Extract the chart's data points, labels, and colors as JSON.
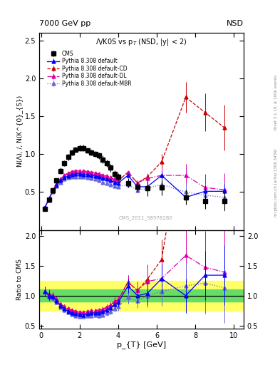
{
  "title_main": "Λ/K0S vs p_{T} (NSD, |y| < 2)",
  "header_left": "7000 GeV pp",
  "header_right": "NSD",
  "ylabel_main": "N(Λ), /, N(K^{0}_{S})",
  "ylabel_ratio": "Ratio to CMS",
  "xlabel": "p_{T} [GeV]",
  "right_label": "Rivet 3.1.10, ≥ 100k events",
  "right_label2": "mcplots.cern.ch [arXiv:1306.3436]",
  "watermark": "CMS_2011_S8978280",
  "ylim_main": [
    0.0,
    2.6
  ],
  "ylim_ratio": [
    0.45,
    2.1
  ],
  "yticks_main": [
    0.5,
    1.0,
    1.5,
    2.0,
    2.5
  ],
  "yticks_ratio": [
    0.5,
    1.0,
    1.5,
    2.0
  ],
  "xlim": [
    -0.1,
    10.5
  ],
  "xticks": [
    0,
    2,
    4,
    6,
    8,
    10
  ],
  "cms_pt": [
    0.2,
    0.4,
    0.6,
    0.8,
    1.0,
    1.2,
    1.4,
    1.6,
    1.8,
    2.0,
    2.2,
    2.4,
    2.6,
    2.8,
    3.0,
    3.2,
    3.4,
    3.6,
    3.8,
    4.0,
    4.5,
    5.0,
    5.5,
    6.25,
    7.5,
    8.5,
    9.5
  ],
  "cms_y": [
    0.28,
    0.4,
    0.52,
    0.65,
    0.78,
    0.88,
    0.96,
    1.02,
    1.06,
    1.08,
    1.08,
    1.05,
    1.02,
    1.0,
    0.98,
    0.93,
    0.88,
    0.82,
    0.74,
    0.7,
    0.62,
    0.57,
    0.55,
    0.56,
    0.43,
    0.38,
    0.38
  ],
  "cms_yerr": [
    0.02,
    0.03,
    0.03,
    0.03,
    0.04,
    0.04,
    0.04,
    0.04,
    0.04,
    0.04,
    0.04,
    0.04,
    0.04,
    0.04,
    0.04,
    0.05,
    0.05,
    0.05,
    0.05,
    0.05,
    0.06,
    0.07,
    0.1,
    0.1,
    0.1,
    0.1,
    0.12
  ],
  "py_default_pt": [
    0.2,
    0.4,
    0.6,
    0.8,
    1.0,
    1.2,
    1.4,
    1.6,
    1.8,
    2.0,
    2.2,
    2.4,
    2.6,
    2.8,
    3.0,
    3.2,
    3.4,
    3.6,
    3.8,
    4.0,
    4.5,
    5.0,
    5.5,
    6.25,
    7.5,
    8.5,
    9.5
  ],
  "py_default_y": [
    0.3,
    0.4,
    0.51,
    0.59,
    0.65,
    0.69,
    0.71,
    0.73,
    0.74,
    0.74,
    0.73,
    0.73,
    0.72,
    0.71,
    0.7,
    0.68,
    0.67,
    0.65,
    0.63,
    0.62,
    0.72,
    0.57,
    0.57,
    0.72,
    0.43,
    0.51,
    0.51
  ],
  "py_default_yerr": [
    0.01,
    0.01,
    0.01,
    0.01,
    0.01,
    0.01,
    0.01,
    0.01,
    0.01,
    0.01,
    0.01,
    0.01,
    0.01,
    0.01,
    0.01,
    0.01,
    0.01,
    0.01,
    0.01,
    0.01,
    0.02,
    0.02,
    0.03,
    0.05,
    0.07,
    0.08,
    0.1
  ],
  "py_cd_pt": [
    0.2,
    0.4,
    0.6,
    0.8,
    1.0,
    1.2,
    1.4,
    1.6,
    1.8,
    2.0,
    2.2,
    2.4,
    2.6,
    2.8,
    3.0,
    3.2,
    3.4,
    3.6,
    3.8,
    4.0,
    4.5,
    5.0,
    5.5,
    6.25,
    7.5,
    8.5,
    9.5
  ],
  "py_cd_y": [
    0.3,
    0.41,
    0.52,
    0.61,
    0.67,
    0.72,
    0.75,
    0.77,
    0.78,
    0.78,
    0.78,
    0.77,
    0.76,
    0.75,
    0.74,
    0.72,
    0.71,
    0.69,
    0.67,
    0.65,
    0.76,
    0.62,
    0.7,
    0.9,
    1.75,
    1.55,
    1.35
  ],
  "py_cd_yerr": [
    0.01,
    0.01,
    0.01,
    0.01,
    0.01,
    0.01,
    0.01,
    0.01,
    0.01,
    0.01,
    0.01,
    0.01,
    0.01,
    0.01,
    0.01,
    0.01,
    0.01,
    0.01,
    0.01,
    0.02,
    0.02,
    0.03,
    0.05,
    0.1,
    0.2,
    0.25,
    0.3
  ],
  "py_dl_pt": [
    0.2,
    0.4,
    0.6,
    0.8,
    1.0,
    1.2,
    1.4,
    1.6,
    1.8,
    2.0,
    2.2,
    2.4,
    2.6,
    2.8,
    3.0,
    3.2,
    3.4,
    3.6,
    3.8,
    4.0,
    4.5,
    5.0,
    5.5,
    6.25,
    7.5,
    8.5,
    9.5
  ],
  "py_dl_y": [
    0.3,
    0.41,
    0.52,
    0.61,
    0.67,
    0.72,
    0.75,
    0.77,
    0.78,
    0.78,
    0.78,
    0.77,
    0.76,
    0.75,
    0.74,
    0.72,
    0.71,
    0.69,
    0.67,
    0.65,
    0.76,
    0.62,
    0.68,
    0.72,
    0.72,
    0.56,
    0.53
  ],
  "py_dl_yerr": [
    0.01,
    0.01,
    0.01,
    0.01,
    0.01,
    0.01,
    0.01,
    0.01,
    0.01,
    0.01,
    0.01,
    0.01,
    0.01,
    0.01,
    0.01,
    0.01,
    0.01,
    0.01,
    0.01,
    0.02,
    0.02,
    0.03,
    0.05,
    0.1,
    0.15,
    0.18,
    0.22
  ],
  "py_mbr_pt": [
    0.2,
    0.4,
    0.6,
    0.8,
    1.0,
    1.2,
    1.4,
    1.6,
    1.8,
    2.0,
    2.2,
    2.4,
    2.6,
    2.8,
    3.0,
    3.2,
    3.4,
    3.6,
    3.8,
    4.0,
    4.5,
    5.0,
    5.5,
    6.25,
    7.5,
    8.5,
    9.5
  ],
  "py_mbr_y": [
    0.3,
    0.39,
    0.5,
    0.58,
    0.63,
    0.67,
    0.69,
    0.7,
    0.7,
    0.7,
    0.7,
    0.69,
    0.68,
    0.67,
    0.65,
    0.63,
    0.62,
    0.6,
    0.58,
    0.57,
    0.6,
    0.52,
    0.55,
    0.6,
    0.5,
    0.46,
    0.43
  ],
  "py_mbr_yerr": [
    0.01,
    0.01,
    0.01,
    0.01,
    0.01,
    0.01,
    0.01,
    0.01,
    0.01,
    0.01,
    0.01,
    0.01,
    0.01,
    0.01,
    0.01,
    0.01,
    0.01,
    0.01,
    0.01,
    0.02,
    0.02,
    0.03,
    0.04,
    0.08,
    0.12,
    0.15,
    0.18
  ],
  "green_band": [
    0.9,
    1.1
  ],
  "yellow_band": [
    0.75,
    1.25
  ],
  "color_cms": "#000000",
  "color_default": "#0000ff",
  "color_cd": "#cc0000",
  "color_dl": "#dd00aa",
  "color_mbr": "#6666dd",
  "legend_entries": [
    "CMS",
    "Pythia 8.308 default",
    "Pythia 8.308 default-CD",
    "Pythia 8.308 default-DL",
    "Pythia 8.308 default-MBR"
  ]
}
